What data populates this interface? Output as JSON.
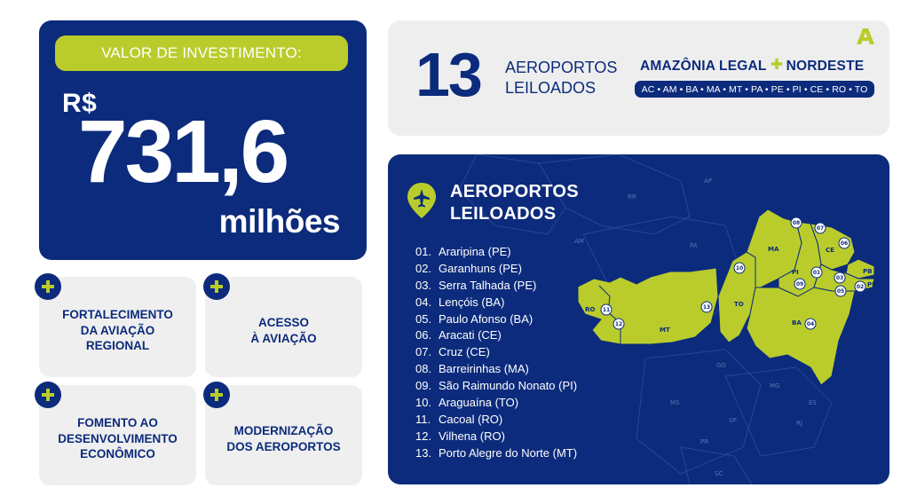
{
  "investment": {
    "label": "VALOR DE INVESTIMENTO:",
    "currency": "R$",
    "amount": "731,6",
    "unit": "milhões"
  },
  "benefits": [
    {
      "text": "FORTALECIMENTO\nDA AVIAÇÃO\nREGIONAL"
    },
    {
      "text": "ACESSO\nÀ AVIAÇÃO"
    },
    {
      "text": "FOMENTO AO\nDESENVOLVIMENTO\nECONÔMICO"
    },
    {
      "text": "MODERNIZAÇÃO\nDOS AEROPORTOS"
    }
  ],
  "header": {
    "count": "13",
    "count_label": "AEROPORTOS\nLEILOADOS",
    "region_left": "AMAZÔNIA LEGAL",
    "region_right": "NORDESTE",
    "states": "AC • AM • BA • MA • MT • PA • PE • PI • CE • RO • TO"
  },
  "map": {
    "title": "AEROPORTOS\nLEILOADOS",
    "airports": [
      {
        "num": "01.",
        "name": "Araripina (PE)"
      },
      {
        "num": "02.",
        "name": "Garanhuns (PE)"
      },
      {
        "num": "03.",
        "name": "Serra Talhada (PE)"
      },
      {
        "num": "04.",
        "name": "Lençóis (BA)"
      },
      {
        "num": "05.",
        "name": "Paulo Afonso (BA)"
      },
      {
        "num": "06.",
        "name": "Aracati (CE)"
      },
      {
        "num": "07.",
        "name": "Cruz (CE)"
      },
      {
        "num": "08.",
        "name": "Barreirinhas (MA)"
      },
      {
        "num": "09.",
        "name": "São Raimundo Nonato (PI)"
      },
      {
        "num": "10.",
        "name": "Araguaína (TO)"
      },
      {
        "num": "11.",
        "name": "Cacoal (RO)"
      },
      {
        "num": "12.",
        "name": "Vilhena (RO)"
      },
      {
        "num": "13.",
        "name": "Porto Alegre do Norte (MT)"
      }
    ],
    "state_labels": [
      "RO",
      "MT",
      "TO",
      "MA",
      "PI",
      "CE",
      "BA",
      "PB",
      "PE",
      "PA",
      "AM",
      "AP",
      "RR",
      "MG",
      "GO",
      "MS",
      "SP",
      "RJ",
      "ES",
      "PR",
      "SC"
    ],
    "markers": [
      "08",
      "07",
      "06",
      "10",
      "01",
      "03",
      "09",
      "05",
      "02",
      "04",
      "13",
      "11",
      "12"
    ]
  },
  "colors": {
    "navy": "#0c2b7c",
    "lime": "#b9cc2c",
    "card_gray": "#eeeeee"
  }
}
